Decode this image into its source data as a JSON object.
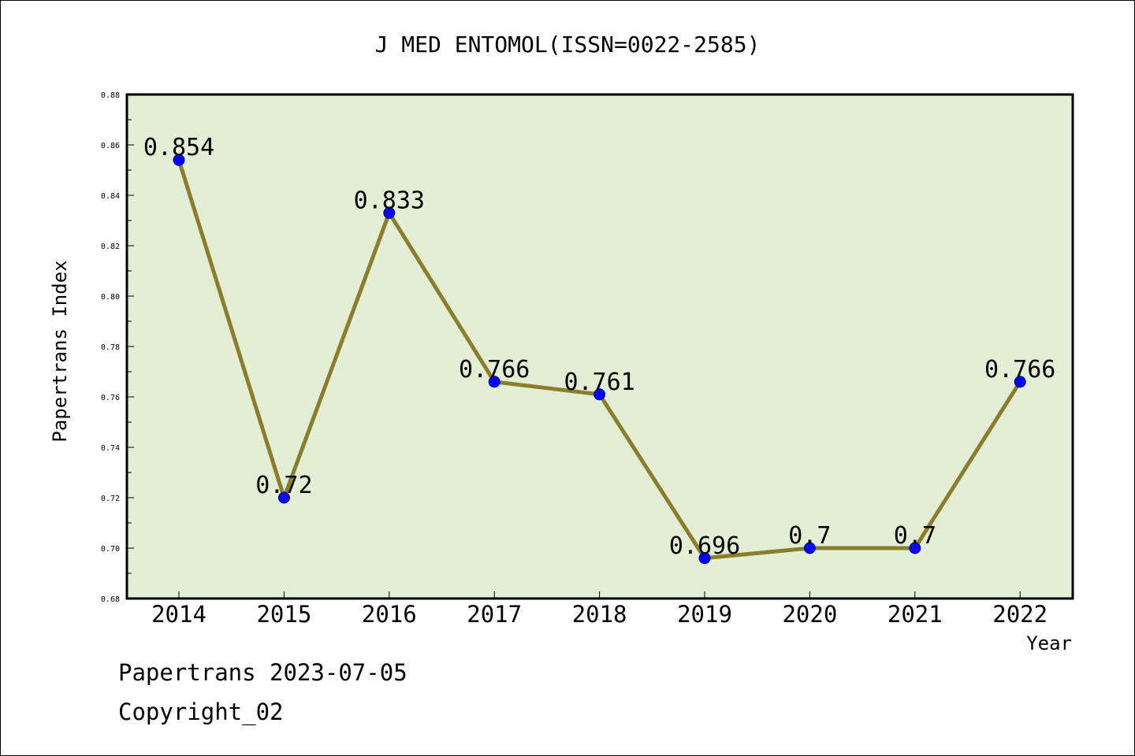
{
  "chart_data": {
    "type": "line",
    "title": "J MED ENTOMOL(ISSN=0022-2585)",
    "xlabel": "Year",
    "ylabel": "Papertrans Index",
    "categories": [
      "2014",
      "2015",
      "2016",
      "2017",
      "2018",
      "2019",
      "2020",
      "2021",
      "2022"
    ],
    "values": [
      0.854,
      0.72,
      0.833,
      0.766,
      0.761,
      0.696,
      0.7,
      0.7,
      0.766
    ],
    "data_labels": [
      "0.854",
      "0.72",
      "0.833",
      "0.766",
      "0.761",
      "0.696",
      "0.7",
      "0.7",
      "0.766"
    ],
    "ylim": [
      0.68,
      0.88
    ],
    "yticks": [
      "0.68",
      "0.70",
      "0.72",
      "0.74",
      "0.76",
      "0.78",
      "0.80",
      "0.82",
      "0.84",
      "0.86",
      "0.88"
    ],
    "grid": false,
    "colors": {
      "plot_background": "#e2efd5",
      "line": "#8b7d2e",
      "marker": "#0000ff",
      "marker_edge": "#00008b"
    }
  },
  "footer": {
    "line1": "Papertrans 2023-07-05",
    "line2": "Copyright_02"
  }
}
